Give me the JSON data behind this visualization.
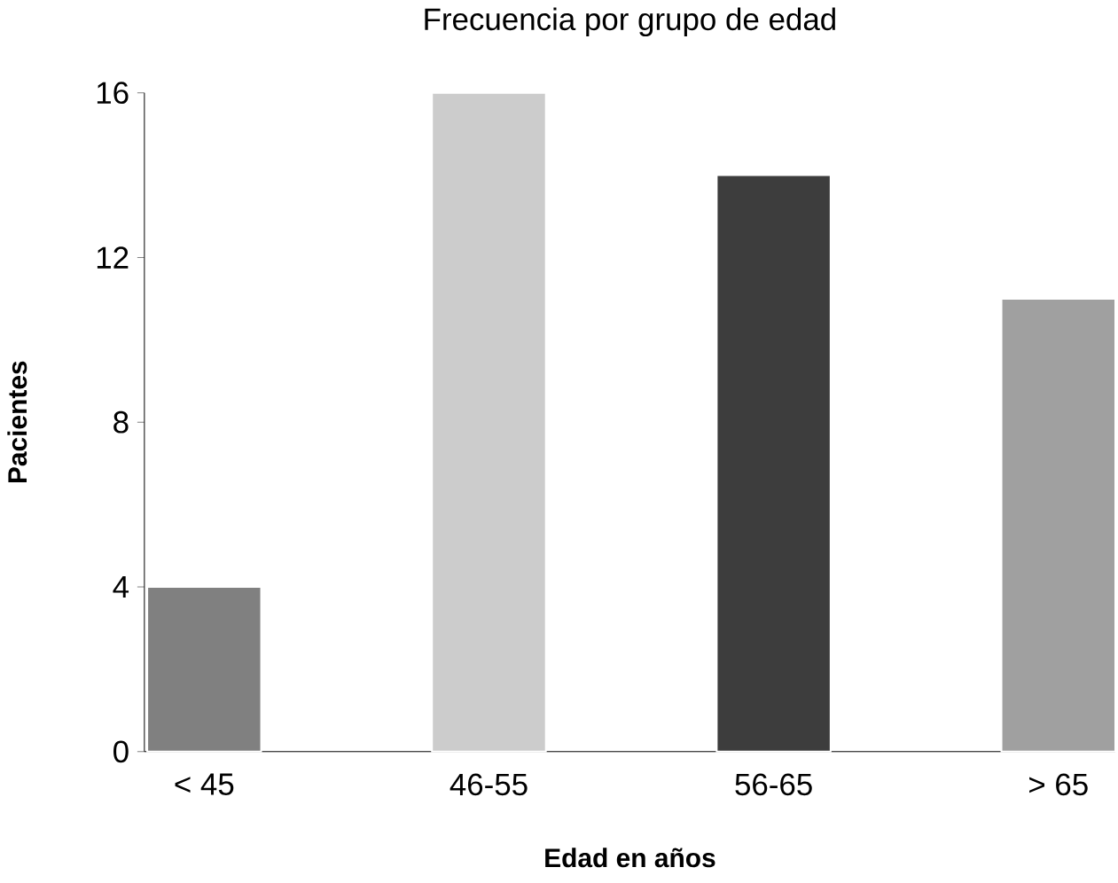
{
  "chart_data": {
    "type": "bar",
    "title": "Frecuencia por grupo de edad",
    "xlabel": "Edad en años",
    "ylabel": "Pacientes",
    "categories": [
      "< 45",
      "46-55",
      "56-65",
      "> 65"
    ],
    "values": [
      4,
      16,
      14,
      11
    ],
    "colors": [
      "#808080",
      "#cccccc",
      "#3d3d3d",
      "#a0a0a0"
    ],
    "ylim": [
      0,
      16
    ],
    "yticks": [
      0,
      4,
      8,
      12,
      16
    ]
  }
}
